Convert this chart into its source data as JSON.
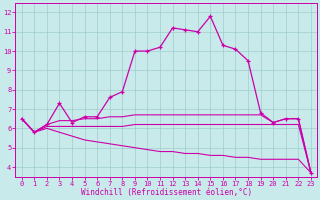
{
  "xlabel": "Windchill (Refroidissement éolien,°C)",
  "bg_color": "#c8eaea",
  "line_color": "#cc00aa",
  "grid_color": "#a0cccc",
  "xlim": [
    -0.5,
    23.5
  ],
  "ylim": [
    3.5,
    12.5
  ],
  "xticks": [
    0,
    1,
    2,
    3,
    4,
    5,
    6,
    7,
    8,
    9,
    10,
    11,
    12,
    13,
    14,
    15,
    16,
    17,
    18,
    19,
    20,
    21,
    22,
    23
  ],
  "yticks": [
    4,
    5,
    6,
    7,
    8,
    9,
    10,
    11,
    12
  ],
  "series1_x": [
    0,
    1,
    2,
    3,
    4,
    5,
    6,
    7,
    8,
    9,
    10,
    11,
    12,
    13,
    14,
    15,
    16,
    17,
    18,
    19,
    20,
    21,
    22,
    23
  ],
  "series1_y": [
    6.5,
    5.8,
    6.2,
    7.3,
    6.3,
    6.6,
    6.6,
    7.6,
    7.9,
    10.0,
    10.0,
    10.2,
    11.2,
    11.1,
    11.0,
    11.8,
    10.3,
    10.1,
    9.5,
    6.8,
    6.3,
    6.5,
    6.5,
    3.7
  ],
  "series2_x": [
    0,
    1,
    2,
    3,
    4,
    5,
    6,
    7,
    8,
    9,
    10,
    11,
    12,
    13,
    14,
    15,
    16,
    17,
    18,
    19,
    20,
    21,
    22,
    23
  ],
  "series2_y": [
    6.5,
    5.8,
    6.2,
    6.4,
    6.4,
    6.5,
    6.5,
    6.6,
    6.6,
    6.7,
    6.7,
    6.7,
    6.7,
    6.7,
    6.7,
    6.7,
    6.7,
    6.7,
    6.7,
    6.7,
    6.3,
    6.5,
    6.5,
    3.7
  ],
  "series3_x": [
    0,
    1,
    2,
    3,
    4,
    5,
    6,
    7,
    8,
    9,
    10,
    11,
    12,
    13,
    14,
    15,
    16,
    17,
    18,
    19,
    20,
    21,
    22,
    23
  ],
  "series3_y": [
    6.5,
    5.8,
    6.1,
    6.1,
    6.1,
    6.1,
    6.1,
    6.1,
    6.1,
    6.2,
    6.2,
    6.2,
    6.2,
    6.2,
    6.2,
    6.2,
    6.2,
    6.2,
    6.2,
    6.2,
    6.2,
    6.2,
    6.2,
    3.7
  ],
  "series4_x": [
    0,
    1,
    2,
    3,
    4,
    5,
    6,
    7,
    8,
    9,
    10,
    11,
    12,
    13,
    14,
    15,
    16,
    17,
    18,
    19,
    20,
    21,
    22,
    23
  ],
  "series4_y": [
    6.5,
    5.8,
    6.0,
    5.8,
    5.6,
    5.4,
    5.3,
    5.2,
    5.1,
    5.0,
    4.9,
    4.8,
    4.8,
    4.7,
    4.7,
    4.6,
    4.6,
    4.5,
    4.5,
    4.4,
    4.4,
    4.4,
    4.4,
    3.7
  ]
}
